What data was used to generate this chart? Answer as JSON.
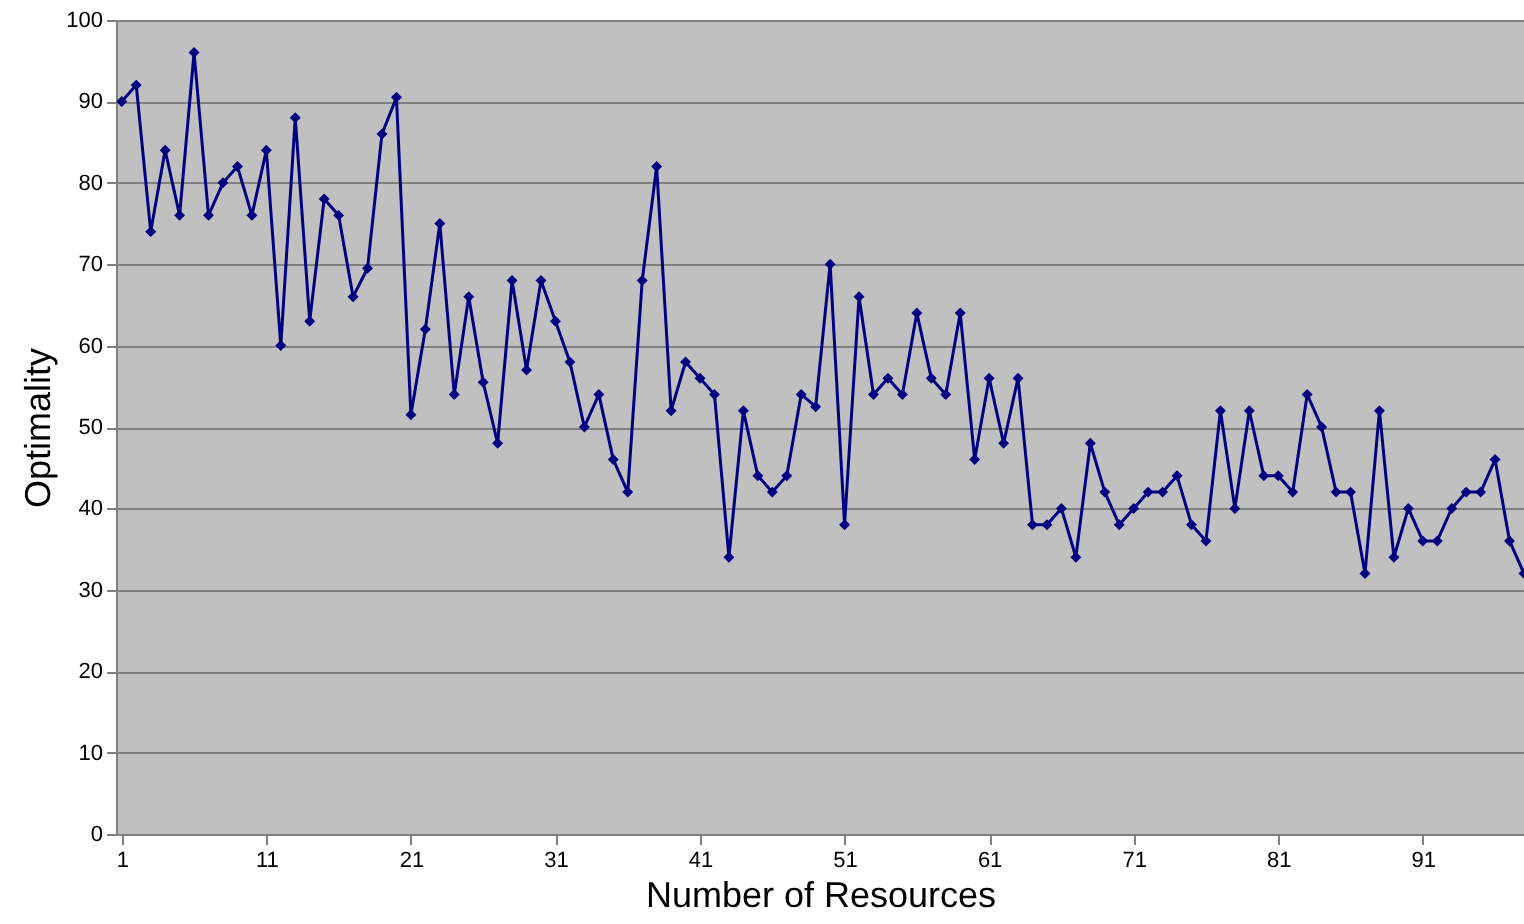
{
  "chart_data": {
    "type": "line",
    "xlabel": "Number of Resources",
    "ylabel": "Optimality",
    "x": [
      1,
      2,
      3,
      4,
      5,
      6,
      7,
      8,
      9,
      10,
      11,
      12,
      13,
      14,
      15,
      16,
      17,
      18,
      19,
      20,
      21,
      22,
      23,
      24,
      25,
      26,
      27,
      28,
      29,
      30,
      31,
      32,
      33,
      34,
      35,
      36,
      37,
      38,
      39,
      40,
      41,
      42,
      43,
      44,
      45,
      46,
      47,
      48,
      49,
      50,
      51,
      52,
      53,
      54,
      55,
      56,
      57,
      58,
      59,
      60,
      61,
      62,
      63,
      64,
      65,
      66,
      67,
      68,
      69,
      70,
      71,
      72,
      73,
      74,
      75,
      76,
      77,
      78,
      79,
      80,
      81,
      82,
      83,
      84,
      85,
      86,
      87,
      88,
      89,
      90,
      91,
      92,
      93,
      94,
      95,
      96,
      97,
      98
    ],
    "series": [
      {
        "color": "#000080",
        "values": [
          90,
          92,
          74,
          84,
          76,
          96,
          76,
          80,
          82,
          76,
          84,
          60,
          88,
          63,
          78,
          76,
          66,
          69.5,
          86,
          90.5,
          51.5,
          62,
          75,
          54,
          66,
          55.5,
          48,
          68,
          57,
          68,
          63,
          58,
          50,
          54,
          46,
          42,
          68,
          82,
          52,
          58,
          56,
          54,
          34,
          52,
          44,
          42,
          44,
          54,
          52.5,
          70,
          38,
          66,
          54,
          56,
          54,
          64,
          56,
          54,
          64,
          46,
          56,
          48,
          56,
          38,
          38,
          40,
          34,
          48,
          42,
          38,
          40,
          42,
          42,
          44,
          38,
          36,
          52,
          40,
          52,
          44,
          44,
          42,
          54,
          50,
          42,
          42,
          32,
          52,
          34,
          40,
          36,
          36,
          40,
          42,
          42,
          46,
          36,
          32
        ]
      }
    ],
    "xlim": [
      0.6,
      98
    ],
    "xticks": [
      1,
      11,
      21,
      31,
      41,
      51,
      61,
      71,
      81,
      91
    ],
    "ylim": [
      0,
      100
    ],
    "yticks": [
      0,
      10,
      20,
      30,
      40,
      50,
      60,
      70,
      80,
      90,
      100
    ],
    "grid": "y",
    "marker": "diamond",
    "line_style": "solid"
  }
}
